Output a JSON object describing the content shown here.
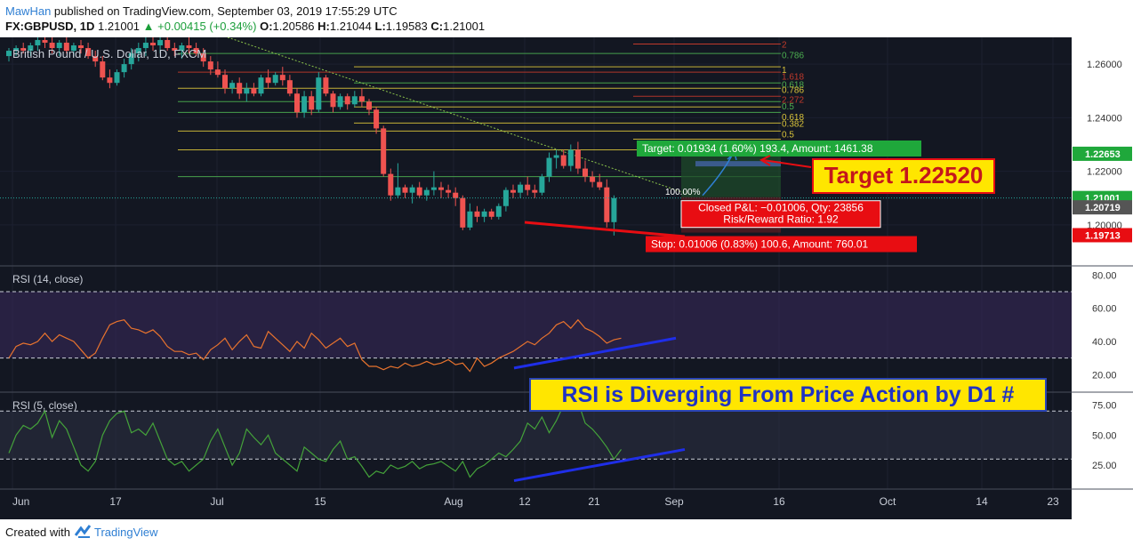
{
  "header": {
    "author": "MawHan",
    "published_text": "published on TradingView.com, September 03, 2019 17:55:29 UTC",
    "symbol": "FX:GBPUSD, 1D",
    "last": "1.21001",
    "change": "▲ +0.00415 (+0.34%)",
    "o_label": "O:",
    "o_val": "1.20586",
    "h_label": "H:",
    "h_val": "1.21044",
    "l_label": "L:",
    "l_val": "1.19583",
    "c_label": "C:",
    "c_val": "1.21001"
  },
  "footer": {
    "created_with": "Created with",
    "brand": "TradingView"
  },
  "colors": {
    "background": "#131722",
    "up": "#26a69a",
    "down": "#ef5350",
    "green_label": "#1fa83b",
    "red_label": "#e80d12",
    "blue_line": "#1f2ee8",
    "rsi14": "#e8732e",
    "rsi5": "#44a23a",
    "yellow_box": "#ffe600"
  },
  "chart_data": {
    "type": "candlestick",
    "title": "British Pound / U.S. Dollar, 1D, FXCM",
    "x_ticks": [
      "Jun",
      "17",
      "Jul",
      "15",
      "Aug",
      "12",
      "21",
      "Sep",
      "16",
      "Oct",
      "14",
      "23"
    ],
    "price_axis": {
      "range": [
        1.185,
        1.27
      ],
      "ticks": [
        "1.26000",
        "1.24000",
        "1.22000",
        "1.20000"
      ],
      "labels": [
        {
          "text": "1.22653",
          "value": 1.22653,
          "color": "#1fa83b"
        },
        {
          "text": "1.21001",
          "value": 1.21001,
          "color": "#1fa83b"
        },
        {
          "text": "1.20719",
          "value": 1.20719,
          "color": "#555555"
        },
        {
          "text": "1.19713",
          "value": 1.19713,
          "color": "#e80d12"
        }
      ]
    },
    "candles_ohlc": [
      [
        1.263,
        1.266,
        1.261,
        1.265
      ],
      [
        1.265,
        1.267,
        1.263,
        1.266
      ],
      [
        1.266,
        1.268,
        1.264,
        1.265
      ],
      [
        1.265,
        1.268,
        1.263,
        1.267
      ],
      [
        1.267,
        1.27,
        1.265,
        1.269
      ],
      [
        1.269,
        1.272,
        1.266,
        1.268
      ],
      [
        1.268,
        1.27,
        1.264,
        1.266
      ],
      [
        1.266,
        1.269,
        1.263,
        1.268
      ],
      [
        1.268,
        1.27,
        1.264,
        1.265
      ],
      [
        1.265,
        1.268,
        1.263,
        1.267
      ],
      [
        1.267,
        1.269,
        1.264,
        1.266
      ],
      [
        1.266,
        1.268,
        1.262,
        1.263
      ],
      [
        1.263,
        1.265,
        1.259,
        1.261
      ],
      [
        1.261,
        1.263,
        1.254,
        1.255
      ],
      [
        1.255,
        1.258,
        1.251,
        1.253
      ],
      [
        1.253,
        1.258,
        1.252,
        1.257
      ],
      [
        1.257,
        1.262,
        1.255,
        1.26
      ],
      [
        1.26,
        1.266,
        1.258,
        1.264
      ],
      [
        1.264,
        1.268,
        1.261,
        1.266
      ],
      [
        1.266,
        1.27,
        1.263,
        1.268
      ],
      [
        1.268,
        1.271,
        1.265,
        1.267
      ],
      [
        1.267,
        1.27,
        1.264,
        1.269
      ],
      [
        1.269,
        1.271,
        1.265,
        1.266
      ],
      [
        1.266,
        1.268,
        1.263,
        1.265
      ],
      [
        1.265,
        1.268,
        1.262,
        1.267
      ],
      [
        1.267,
        1.27,
        1.264,
        1.266
      ],
      [
        1.266,
        1.268,
        1.263,
        1.264
      ],
      [
        1.264,
        1.266,
        1.259,
        1.261
      ],
      [
        1.261,
        1.263,
        1.256,
        1.258
      ],
      [
        1.258,
        1.261,
        1.255,
        1.256
      ],
      [
        1.256,
        1.258,
        1.249,
        1.251
      ],
      [
        1.251,
        1.254,
        1.249,
        1.253
      ],
      [
        1.253,
        1.255,
        1.247,
        1.249
      ],
      [
        1.249,
        1.253,
        1.246,
        1.251
      ],
      [
        1.251,
        1.253,
        1.248,
        1.249
      ],
      [
        1.249,
        1.256,
        1.248,
        1.255
      ],
      [
        1.255,
        1.258,
        1.251,
        1.253
      ],
      [
        1.253,
        1.257,
        1.252,
        1.256
      ],
      [
        1.256,
        1.259,
        1.252,
        1.254
      ],
      [
        1.254,
        1.256,
        1.248,
        1.249
      ],
      [
        1.249,
        1.251,
        1.24,
        1.242
      ],
      [
        1.242,
        1.25,
        1.24,
        1.248
      ],
      [
        1.248,
        1.25,
        1.241,
        1.243
      ],
      [
        1.243,
        1.257,
        1.242,
        1.255
      ],
      [
        1.255,
        1.256,
        1.248,
        1.249
      ],
      [
        1.249,
        1.25,
        1.242,
        1.244
      ],
      [
        1.244,
        1.249,
        1.243,
        1.248
      ],
      [
        1.248,
        1.249,
        1.243,
        1.245
      ],
      [
        1.245,
        1.25,
        1.244,
        1.248
      ],
      [
        1.248,
        1.251,
        1.244,
        1.246
      ],
      [
        1.246,
        1.247,
        1.241,
        1.243
      ],
      [
        1.243,
        1.244,
        1.234,
        1.236
      ],
      [
        1.236,
        1.237,
        1.218,
        1.219
      ],
      [
        1.219,
        1.221,
        1.209,
        1.211
      ],
      [
        1.211,
        1.223,
        1.21,
        1.214
      ],
      [
        1.214,
        1.215,
        1.21,
        1.212
      ],
      [
        1.212,
        1.215,
        1.208,
        1.214
      ],
      [
        1.214,
        1.216,
        1.21,
        1.211
      ],
      [
        1.211,
        1.214,
        1.209,
        1.213
      ],
      [
        1.213,
        1.22,
        1.211,
        1.214
      ],
      [
        1.214,
        1.216,
        1.21,
        1.213
      ],
      [
        1.213,
        1.215,
        1.21,
        1.212
      ],
      [
        1.212,
        1.214,
        1.207,
        1.21
      ],
      [
        1.21,
        1.211,
        1.198,
        1.199
      ],
      [
        1.199,
        1.208,
        1.198,
        1.205
      ],
      [
        1.205,
        1.207,
        1.201,
        1.203
      ],
      [
        1.203,
        1.206,
        1.201,
        1.205
      ],
      [
        1.205,
        1.206,
        1.202,
        1.203
      ],
      [
        1.203,
        1.208,
        1.202,
        1.207
      ],
      [
        1.207,
        1.214,
        1.205,
        1.213
      ],
      [
        1.213,
        1.215,
        1.21,
        1.212
      ],
      [
        1.212,
        1.216,
        1.21,
        1.215
      ],
      [
        1.215,
        1.218,
        1.211,
        1.213
      ],
      [
        1.213,
        1.215,
        1.21,
        1.212
      ],
      [
        1.212,
        1.219,
        1.211,
        1.218
      ],
      [
        1.218,
        1.227,
        1.216,
        1.225
      ],
      [
        1.225,
        1.228,
        1.221,
        1.226
      ],
      [
        1.226,
        1.228,
        1.221,
        1.222
      ],
      [
        1.222,
        1.23,
        1.22,
        1.228
      ],
      [
        1.228,
        1.231,
        1.219,
        1.221
      ],
      [
        1.221,
        1.224,
        1.216,
        1.218
      ],
      [
        1.218,
        1.22,
        1.214,
        1.216
      ],
      [
        1.216,
        1.219,
        1.213,
        1.214
      ],
      [
        1.214,
        1.217,
        1.199,
        1.201
      ],
      [
        1.201,
        1.211,
        1.196,
        1.21
      ]
    ],
    "fib_levels": [
      {
        "label": "0.786",
        "color": "#4caf50"
      },
      {
        "label": "1",
        "color": "#d8c23a"
      },
      {
        "label": "1.618",
        "color": "#c0392b"
      },
      {
        "label": "0.618",
        "color": "#4caf50"
      },
      {
        "label": "0.786",
        "color": "#d8c23a"
      },
      {
        "label": "2.272",
        "color": "#c0392b"
      },
      {
        "label": "0.5",
        "color": "#4caf50"
      },
      {
        "label": "0.618",
        "color": "#d8c23a"
      },
      {
        "label": "0.382",
        "color": "#d8c23a"
      },
      {
        "label": "0.5",
        "color": "#d8c23a"
      },
      {
        "label": "0",
        "color": "#d8c23a"
      }
    ],
    "position_label": "100.00%",
    "target_label": "Target: 0.01934 (1.60%) 193.4, Amount: 1461.38",
    "stop_label": "Stop: 0.01006 (0.83%) 100.6, Amount: 760.01",
    "pnl_line1": "Closed P&L: −0.01006, Qty: 23856",
    "pnl_line2": "Risk/Reward Ratio: 1.92",
    "target_box": "Target 1.22520",
    "rsi14": {
      "label": "RSI (14, close)",
      "range": [
        10,
        85
      ],
      "ticks": [
        "80.00",
        "60.00",
        "40.00",
        "20.00"
      ],
      "values": [
        30,
        37,
        39,
        38,
        40,
        45,
        40,
        44,
        42,
        40,
        35,
        30,
        33,
        42,
        50,
        52,
        53,
        48,
        47,
        45,
        47,
        43,
        37,
        34,
        34,
        32,
        33,
        29,
        35,
        38,
        42,
        35,
        40,
        44,
        37,
        36,
        46,
        42,
        38,
        34,
        40,
        36,
        45,
        41,
        36,
        39,
        42,
        37,
        39,
        29,
        25,
        25,
        23,
        25,
        24,
        27,
        25,
        26,
        28,
        26,
        27,
        29,
        26,
        27,
        22,
        30,
        25,
        27,
        30,
        32,
        34,
        37,
        40,
        38,
        42,
        45,
        50,
        52,
        48,
        53,
        48,
        46,
        43,
        39,
        41,
        42
      ]
    },
    "rsi5": {
      "label": "RSI (5, close)",
      "range": [
        5,
        85
      ],
      "ticks": [
        "75.00",
        "50.00",
        "25.00"
      ],
      "values": [
        35,
        50,
        58,
        55,
        60,
        70,
        48,
        62,
        55,
        40,
        25,
        20,
        28,
        50,
        62,
        68,
        70,
        52,
        55,
        50,
        60,
        45,
        30,
        25,
        28,
        20,
        25,
        30,
        45,
        55,
        40,
        25,
        35,
        55,
        48,
        42,
        50,
        35,
        30,
        25,
        20,
        40,
        35,
        30,
        28,
        38,
        45,
        30,
        32,
        24,
        15,
        20,
        18,
        25,
        22,
        24,
        28,
        22,
        25,
        26,
        28,
        24,
        20,
        28,
        15,
        22,
        25,
        30,
        35,
        32,
        38,
        45,
        60,
        55,
        65,
        52,
        62,
        75,
        70,
        78,
        60,
        55,
        48,
        40,
        30,
        38
      ]
    },
    "annotation": "RSI is Diverging From Price Action by D1 #"
  }
}
